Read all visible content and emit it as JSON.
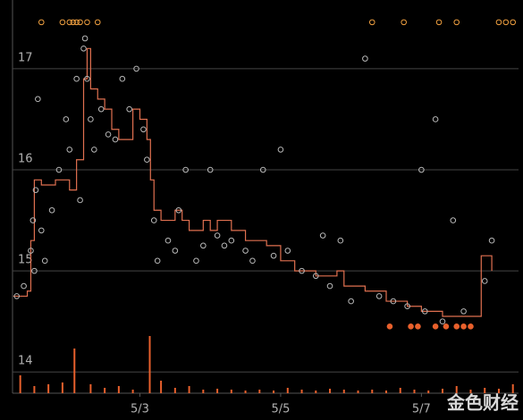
{
  "chart_data": {
    "type": "scatter",
    "xlim": [
      1.19,
      8.38
    ],
    "ylim": [
      13.79,
      17.68
    ],
    "y2lim": [
      0,
      100
    ],
    "xticks": [
      {
        "value": 3,
        "label": "5/3"
      },
      {
        "value": 5,
        "label": "5/5"
      },
      {
        "value": 7,
        "label": "5/7"
      }
    ],
    "yticks": [
      14,
      15,
      16,
      17
    ],
    "grid": true,
    "watermark": "金色财经",
    "series": [
      {
        "type": "bar",
        "axis": "y2",
        "color": "#e8602c",
        "x": [
          1.3,
          1.5,
          1.7,
          1.9,
          2.07,
          2.3,
          2.5,
          2.7,
          2.9,
          3.14,
          3.3,
          3.5,
          3.7,
          3.9,
          4.1,
          4.3,
          4.5,
          4.7,
          4.9,
          5.1,
          5.3,
          5.5,
          5.7,
          5.9,
          6.1,
          6.3,
          6.5,
          6.7,
          6.9,
          7.1,
          7.3,
          7.5,
          7.7,
          7.9,
          8.1,
          8.3
        ],
        "values": [
          20,
          8,
          10,
          12,
          50,
          10,
          6,
          8,
          4,
          64,
          14,
          6,
          8,
          4,
          5,
          4,
          3,
          4,
          3,
          6,
          4,
          3,
          5,
          4,
          3,
          4,
          3,
          6,
          4,
          3,
          5,
          8,
          4,
          6,
          5,
          10
        ]
      },
      {
        "type": "step",
        "color": "#e07050",
        "x": [
          1.2,
          1.4,
          1.45,
          1.5,
          1.6,
          1.8,
          2.0,
          2.1,
          2.2,
          2.25,
          2.3,
          2.4,
          2.5,
          2.6,
          2.7,
          2.9,
          3.0,
          3.1,
          3.15,
          3.2,
          3.3,
          3.5,
          3.6,
          3.7,
          3.9,
          4.0,
          4.1,
          4.3,
          4.5,
          4.8,
          5.0,
          5.2,
          5.5,
          5.8,
          5.9,
          6.2,
          6.5,
          6.8,
          7.0,
          7.3,
          7.6,
          7.8,
          7.85,
          8.0
        ],
        "values": [
          14.75,
          14.8,
          15.3,
          15.9,
          15.85,
          15.9,
          15.8,
          16.1,
          16.9,
          17.2,
          16.8,
          16.7,
          16.6,
          16.4,
          16.3,
          16.6,
          16.5,
          16.3,
          15.9,
          15.6,
          15.5,
          15.6,
          15.5,
          15.4,
          15.5,
          15.4,
          15.5,
          15.4,
          15.3,
          15.25,
          15.1,
          15.0,
          14.95,
          15.0,
          14.85,
          14.8,
          14.7,
          14.65,
          14.6,
          14.55,
          14.55,
          14.55,
          15.15,
          15.0
        ]
      },
      {
        "type": "scatter",
        "color": "#b8b8b8",
        "filled": false,
        "x": [
          1.25,
          1.35,
          1.45,
          1.48,
          1.5,
          1.52,
          1.55,
          1.6,
          1.65,
          1.75,
          1.85,
          1.95,
          2.0,
          2.1,
          2.15,
          2.2,
          2.22,
          2.25,
          2.3,
          2.35,
          2.45,
          2.55,
          2.65,
          2.75,
          2.85,
          2.95,
          3.05,
          3.1,
          3.2,
          3.25,
          3.4,
          3.5,
          3.55,
          3.65,
          3.8,
          3.9,
          4.0,
          4.1,
          4.2,
          4.3,
          4.5,
          4.6,
          4.75,
          5.0,
          4.9,
          5.1,
          5.3,
          5.5,
          5.6,
          5.7,
          5.85,
          6.0,
          6.2,
          6.4,
          6.6,
          6.8,
          7.0,
          7.05,
          7.2,
          7.3,
          7.45,
          7.6,
          7.9,
          8.0
        ],
        "values": [
          14.75,
          14.85,
          15.2,
          15.5,
          15.0,
          15.8,
          16.7,
          15.4,
          15.1,
          15.6,
          16.0,
          16.5,
          16.2,
          16.9,
          15.7,
          17.2,
          17.3,
          16.9,
          16.5,
          16.2,
          16.6,
          16.35,
          16.3,
          16.9,
          16.6,
          17.0,
          16.4,
          16.1,
          15.5,
          15.1,
          15.3,
          15.2,
          15.6,
          16.0,
          15.1,
          15.25,
          16.0,
          15.35,
          15.25,
          15.3,
          15.2,
          15.1,
          16.0,
          16.2,
          15.15,
          15.2,
          15.0,
          14.95,
          15.35,
          14.85,
          15.3,
          14.7,
          17.1,
          14.75,
          14.7,
          14.65,
          16.0,
          14.6,
          16.5,
          14.5,
          15.5,
          14.6,
          14.9,
          15.3
        ]
      },
      {
        "type": "scatter",
        "color": "#e8602c",
        "filled": true,
        "x": [
          6.55,
          6.85,
          6.95,
          7.2,
          7.35,
          7.5,
          7.6,
          7.7
        ],
        "values": [
          14.45,
          14.45,
          14.45,
          14.45,
          14.45,
          14.45,
          14.45,
          14.45
        ]
      },
      {
        "type": "scatter",
        "color": "#f0a040",
        "filled": false,
        "x": [
          1.6,
          1.9,
          2.0,
          2.05,
          2.1,
          2.15,
          2.25,
          2.4,
          6.3,
          6.75,
          7.25,
          7.5,
          8.1,
          8.2,
          8.3
        ],
        "values": [
          17.46,
          17.46,
          17.46,
          17.46,
          17.46,
          17.46,
          17.46,
          17.46,
          17.46,
          17.46,
          17.46,
          17.46,
          17.46,
          17.46,
          17.46
        ]
      }
    ]
  }
}
